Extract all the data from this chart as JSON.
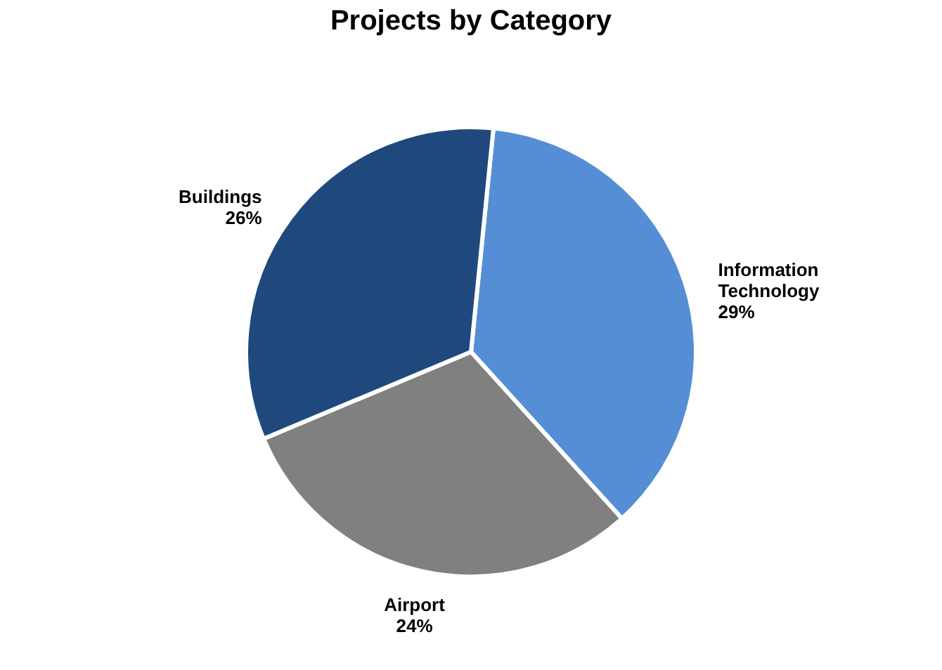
{
  "chart_data": {
    "type": "pie",
    "title": "Projects by Category",
    "categories": [
      "Information Technology",
      "Airport",
      "Buildings"
    ],
    "values": [
      29,
      24,
      26
    ],
    "value_labels": [
      "29%",
      "24%",
      "26%"
    ],
    "colors": [
      "#558ed5",
      "#808080",
      "#1f497d"
    ],
    "legend": false
  }
}
